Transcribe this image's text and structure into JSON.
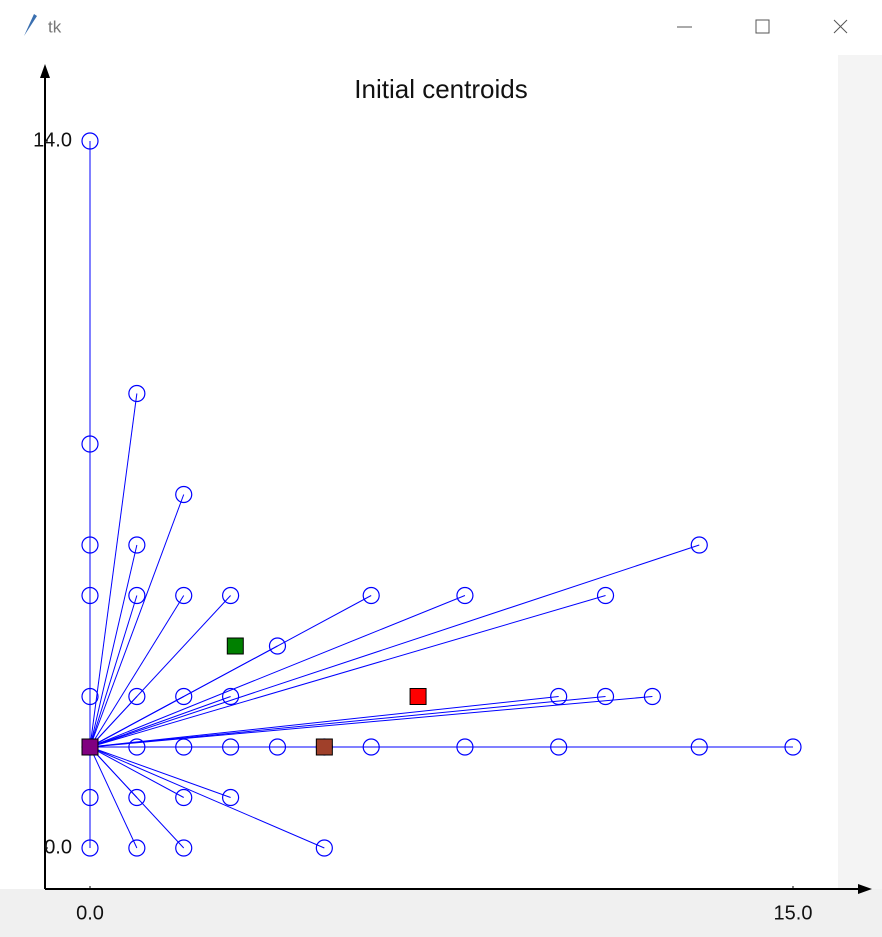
{
  "window": {
    "title": "tk"
  },
  "chart_data": {
    "type": "scatter",
    "title": "Initial centroids",
    "xlim": [
      0,
      15
    ],
    "ylim": [
      0,
      14
    ],
    "xticks": [
      {
        "value": 0,
        "label": "0.0"
      },
      {
        "value": 15,
        "label": "15.0"
      }
    ],
    "yticks": [
      {
        "value": 0,
        "label": "0.0"
      },
      {
        "value": 14,
        "label": "14.0"
      }
    ],
    "points": {
      "color": "#0000ff",
      "x": [
        0,
        1,
        0,
        2,
        0,
        1,
        0,
        1,
        2,
        3,
        6,
        8,
        13,
        11,
        4,
        0,
        1,
        2,
        3,
        10,
        11,
        12,
        0,
        1,
        2,
        3,
        4,
        5,
        6,
        8,
        10,
        13,
        15,
        0,
        1,
        2,
        3,
        0,
        1,
        2,
        5
      ],
      "y": [
        14,
        9,
        8,
        7,
        6,
        6,
        5,
        5,
        5,
        5,
        5,
        5,
        6,
        5,
        4,
        3,
        3,
        3,
        3,
        3,
        3,
        3,
        2,
        2,
        2,
        2,
        2,
        2,
        2,
        2,
        2,
        2,
        2,
        1,
        1,
        1,
        1,
        0,
        0,
        0,
        0
      ]
    },
    "centroids": {
      "x": [
        3.1,
        7,
        5,
        0
      ],
      "y": [
        4,
        3,
        2,
        2
      ],
      "colors": [
        "#008000",
        "#ff0000",
        "#a0402a",
        "#800080"
      ]
    }
  }
}
